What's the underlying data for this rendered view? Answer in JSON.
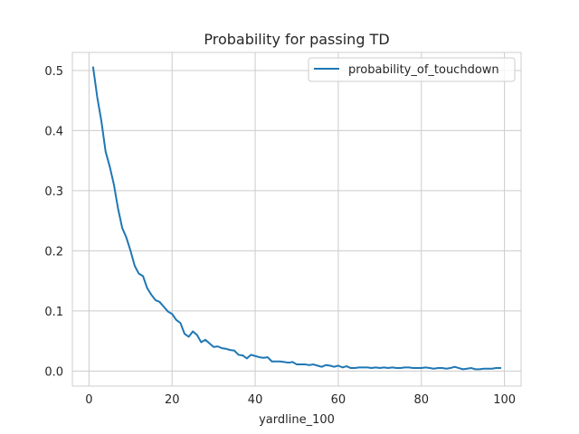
{
  "chart_data": {
    "type": "line",
    "title": "Probability for passing TD",
    "xlabel": "yardline_100",
    "ylabel": "",
    "xlim": [
      -4,
      104
    ],
    "ylim": [
      -0.025,
      0.53
    ],
    "xticks": [
      0,
      20,
      40,
      60,
      80,
      100
    ],
    "yticks": [
      0.0,
      0.1,
      0.2,
      0.3,
      0.4,
      0.5
    ],
    "xtick_labels": [
      "0",
      "20",
      "40",
      "60",
      "80",
      "100"
    ],
    "ytick_labels": [
      "0.0",
      "0.1",
      "0.2",
      "0.3",
      "0.4",
      "0.5"
    ],
    "grid": true,
    "legend_position": "top-right",
    "series": [
      {
        "name": "probability_of_touchdown",
        "color": "#1f77b4",
        "x": [
          1,
          2,
          3,
          4,
          5,
          6,
          7,
          8,
          9,
          10,
          11,
          12,
          13,
          14,
          15,
          16,
          17,
          18,
          19,
          20,
          21,
          22,
          23,
          24,
          25,
          26,
          27,
          28,
          29,
          30,
          31,
          32,
          33,
          34,
          35,
          36,
          37,
          38,
          39,
          40,
          41,
          42,
          43,
          44,
          45,
          46,
          47,
          48,
          49,
          50,
          51,
          52,
          53,
          54,
          55,
          56,
          57,
          58,
          59,
          60,
          61,
          62,
          63,
          64,
          65,
          66,
          67,
          68,
          69,
          70,
          71,
          72,
          73,
          74,
          75,
          76,
          77,
          78,
          79,
          80,
          81,
          82,
          83,
          84,
          85,
          86,
          87,
          88,
          89,
          90,
          91,
          92,
          93,
          94,
          95,
          96,
          97,
          98,
          99
        ],
        "y": [
          0.505,
          0.455,
          0.415,
          0.365,
          0.34,
          0.31,
          0.27,
          0.238,
          0.222,
          0.2,
          0.175,
          0.162,
          0.158,
          0.138,
          0.127,
          0.118,
          0.115,
          0.107,
          0.099,
          0.095,
          0.085,
          0.08,
          0.062,
          0.057,
          0.066,
          0.06,
          0.048,
          0.052,
          0.046,
          0.04,
          0.041,
          0.038,
          0.037,
          0.035,
          0.034,
          0.027,
          0.026,
          0.021,
          0.027,
          0.025,
          0.023,
          0.022,
          0.023,
          0.016,
          0.016,
          0.016,
          0.015,
          0.014,
          0.015,
          0.011,
          0.011,
          0.011,
          0.01,
          0.011,
          0.009,
          0.007,
          0.01,
          0.009,
          0.007,
          0.009,
          0.006,
          0.008,
          0.005,
          0.005,
          0.006,
          0.006,
          0.006,
          0.005,
          0.006,
          0.005,
          0.006,
          0.005,
          0.006,
          0.005,
          0.005,
          0.006,
          0.006,
          0.005,
          0.005,
          0.005,
          0.006,
          0.005,
          0.004,
          0.005,
          0.005,
          0.004,
          0.005,
          0.007,
          0.005,
          0.003,
          0.004,
          0.005,
          0.003,
          0.003,
          0.004,
          0.004,
          0.004,
          0.005,
          0.005
        ]
      }
    ]
  }
}
